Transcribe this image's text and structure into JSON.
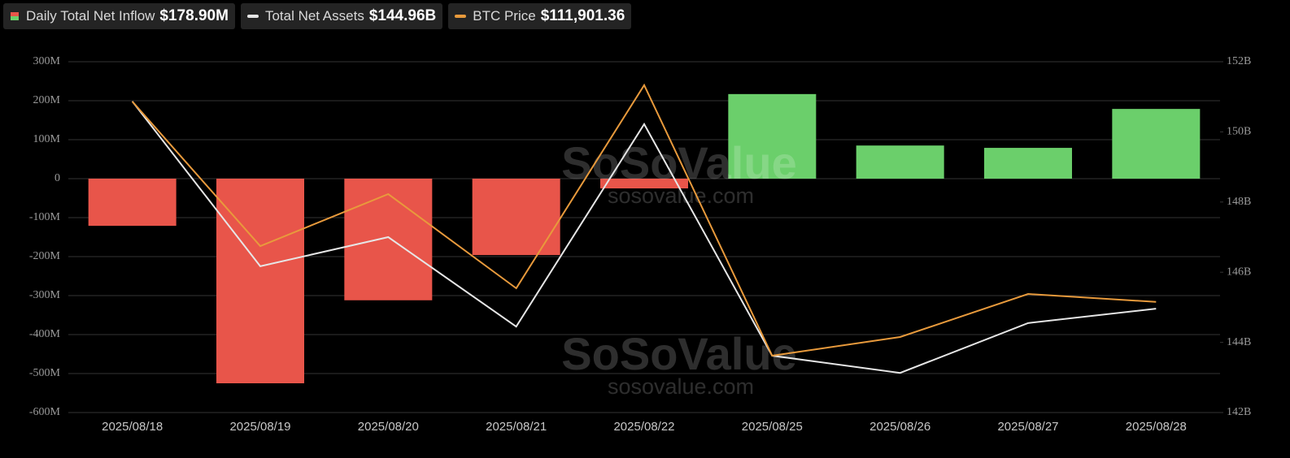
{
  "chart_data": {
    "type": "bar-line",
    "categories": [
      "2025/08/18",
      "2025/08/19",
      "2025/08/20",
      "2025/08/21",
      "2025/08/22",
      "2025/08/25",
      "2025/08/26",
      "2025/08/27",
      "2025/08/28"
    ],
    "series": [
      {
        "name": "Daily Total Net Inflow",
        "latest_label": "$178.90M",
        "type": "bar",
        "color_up": "#6bcf6b",
        "color_down": "#e8554a",
        "values": [
          -121,
          -525,
          -312,
          -196,
          -25,
          217,
          85,
          79,
          178.9
        ]
      },
      {
        "name": "Total Net Assets",
        "latest_label": "$144.96B",
        "type": "line",
        "axis": "y2",
        "color": "#e6e6e6",
        "values": [
          150.87,
          146.17,
          147.0,
          144.45,
          150.22,
          143.62,
          143.13,
          144.55,
          144.96
        ]
      },
      {
        "name": "BTC Price",
        "latest_label": "$111,901.36",
        "type": "line",
        "axis": "y3",
        "color": "#e89a3c",
        "values": [
          116614,
          113215,
          114437,
          112222,
          117000,
          110637,
          111076,
          112088,
          111901
        ]
      }
    ],
    "ylim": [
      -600,
      300
    ],
    "yticks": [
      {
        "value": 300,
        "label": "300M"
      },
      {
        "value": 200,
        "label": "200M"
      },
      {
        "value": 100,
        "label": "100M"
      },
      0,
      {
        "value": -100,
        "label": "-100M"
      },
      {
        "value": -200,
        "label": "-200M"
      },
      {
        "value": -300,
        "label": "-300M"
      },
      {
        "value": -400,
        "label": "-400M"
      },
      {
        "value": -500,
        "label": "-500M"
      },
      {
        "value": -600,
        "label": "-600M"
      }
    ],
    "y2lim": [
      142,
      152
    ],
    "y2ticks": [
      {
        "value": 152,
        "label": "152B"
      },
      {
        "value": 150,
        "label": "150B"
      },
      {
        "value": 148,
        "label": "148B"
      },
      {
        "value": 146,
        "label": "146B"
      },
      {
        "value": 144,
        "label": "144B"
      },
      {
        "value": 142,
        "label": "142B"
      }
    ],
    "y3lim": [
      109300,
      117550
    ],
    "grid": true,
    "watermark": [
      "SoSoValue",
      "sosovalue.com"
    ]
  }
}
